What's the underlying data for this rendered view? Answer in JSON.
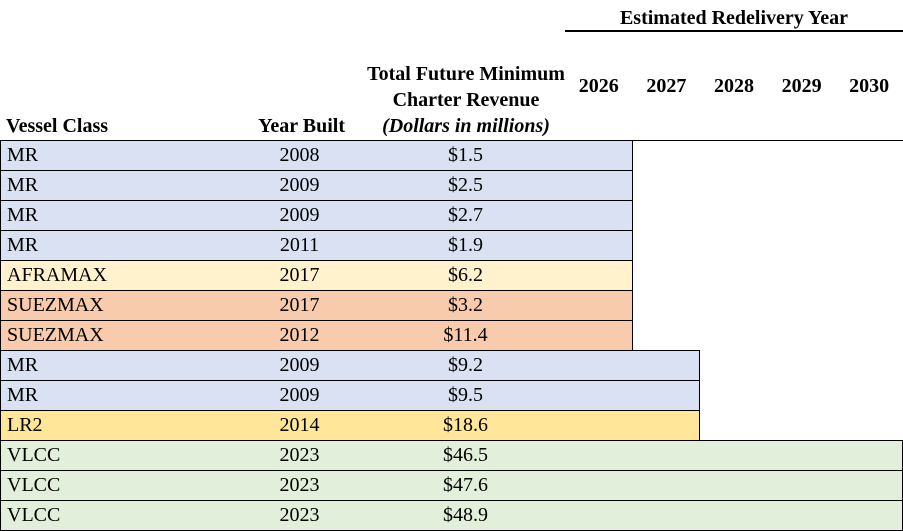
{
  "header": {
    "estimated_redelivery_title": "Estimated Redelivery Year",
    "years": [
      "2026",
      "2027",
      "2028",
      "2029",
      "2030"
    ],
    "columns": {
      "vessel_class": "Vessel Class",
      "year_built": "Year Built",
      "revenue_line1": "Total Future Minimum",
      "revenue_line2": "Charter Revenue",
      "revenue_line3": "(Dollars in millions)"
    }
  },
  "class_colors": {
    "MR": "#D9E1F2",
    "AFRAMAX": "#FFF2CC",
    "SUEZMAX": "#F8CBAD",
    "LR2": "#FFE699",
    "VLCC": "#E2EFDA"
  },
  "border_color": "#000000",
  "rows": [
    {
      "vessel_class": "MR",
      "year_built": "2008",
      "revenue": "$1.5",
      "redelivery_year": 2026
    },
    {
      "vessel_class": "MR",
      "year_built": "2009",
      "revenue": "$2.5",
      "redelivery_year": 2026
    },
    {
      "vessel_class": "MR",
      "year_built": "2009",
      "revenue": "$2.7",
      "redelivery_year": 2026
    },
    {
      "vessel_class": "MR",
      "year_built": "2011",
      "revenue": "$1.9",
      "redelivery_year": 2026
    },
    {
      "vessel_class": "AFRAMAX",
      "year_built": "2017",
      "revenue": "$6.2",
      "redelivery_year": 2026
    },
    {
      "vessel_class": "SUEZMAX",
      "year_built": "2017",
      "revenue": "$3.2",
      "redelivery_year": 2026
    },
    {
      "vessel_class": "SUEZMAX",
      "year_built": "2012",
      "revenue": "$11.4",
      "redelivery_year": 2026
    },
    {
      "vessel_class": "MR",
      "year_built": "2009",
      "revenue": "$9.2",
      "redelivery_year": 2027
    },
    {
      "vessel_class": "MR",
      "year_built": "2009",
      "revenue": "$9.5",
      "redelivery_year": 2027
    },
    {
      "vessel_class": "LR2",
      "year_built": "2014",
      "revenue": "$18.6",
      "redelivery_year": 2027
    },
    {
      "vessel_class": "VLCC",
      "year_built": "2023",
      "revenue": "$46.5",
      "redelivery_year": 2030
    },
    {
      "vessel_class": "VLCC",
      "year_built": "2023",
      "revenue": "$47.6",
      "redelivery_year": 2030
    },
    {
      "vessel_class": "VLCC",
      "year_built": "2023",
      "revenue": "$48.9",
      "redelivery_year": 2030
    }
  ],
  "chart_data": {
    "type": "table",
    "subtype": "gantt",
    "title": "Estimated Redelivery Year",
    "columns": [
      "Vessel Class",
      "Year Built",
      "Total Future Minimum Charter Revenue (Dollars in millions)"
    ],
    "timeline_axis": {
      "label": "Estimated Redelivery Year",
      "ticks": [
        2026,
        2027,
        2028,
        2029,
        2030
      ],
      "range": [
        2026,
        2030
      ]
    },
    "rows": [
      {
        "vessel_class": "MR",
        "year_built": 2008,
        "revenue_millions": 1.5,
        "bar_end_year": 2026
      },
      {
        "vessel_class": "MR",
        "year_built": 2009,
        "revenue_millions": 2.5,
        "bar_end_year": 2026
      },
      {
        "vessel_class": "MR",
        "year_built": 2009,
        "revenue_millions": 2.7,
        "bar_end_year": 2026
      },
      {
        "vessel_class": "MR",
        "year_built": 2011,
        "revenue_millions": 1.9,
        "bar_end_year": 2026
      },
      {
        "vessel_class": "AFRAMAX",
        "year_built": 2017,
        "revenue_millions": 6.2,
        "bar_end_year": 2026
      },
      {
        "vessel_class": "SUEZMAX",
        "year_built": 2017,
        "revenue_millions": 3.2,
        "bar_end_year": 2026
      },
      {
        "vessel_class": "SUEZMAX",
        "year_built": 2012,
        "revenue_millions": 11.4,
        "bar_end_year": 2026
      },
      {
        "vessel_class": "MR",
        "year_built": 2009,
        "revenue_millions": 9.2,
        "bar_end_year": 2027
      },
      {
        "vessel_class": "MR",
        "year_built": 2009,
        "revenue_millions": 9.5,
        "bar_end_year": 2027
      },
      {
        "vessel_class": "LR2",
        "year_built": 2014,
        "revenue_millions": 18.6,
        "bar_end_year": 2027
      },
      {
        "vessel_class": "VLCC",
        "year_built": 2023,
        "revenue_millions": 46.5,
        "bar_end_year": 2030
      },
      {
        "vessel_class": "VLCC",
        "year_built": 2023,
        "revenue_millions": 47.6,
        "bar_end_year": 2030
      },
      {
        "vessel_class": "VLCC",
        "year_built": 2023,
        "revenue_millions": 48.9,
        "bar_end_year": 2030
      }
    ],
    "legend_colors": {
      "MR": "#D9E1F2",
      "AFRAMAX": "#FFF2CC",
      "SUEZMAX": "#F8CBAD",
      "LR2": "#FFE699",
      "VLCC": "#E2EFDA"
    }
  }
}
